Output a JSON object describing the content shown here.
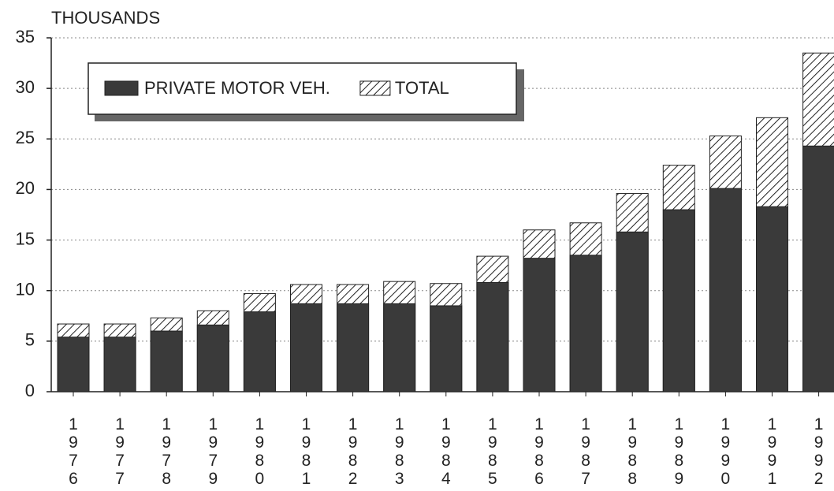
{
  "chart_data": {
    "type": "bar",
    "y_axis_label": "THOUSANDS",
    "categories": [
      "1976",
      "1977",
      "1978",
      "1979",
      "1980",
      "1981",
      "1982",
      "1983",
      "1984",
      "1985",
      "1986",
      "1987",
      "1988",
      "1989",
      "1990",
      "1991",
      "1992"
    ],
    "series": [
      {
        "name": "PRIVATE MOTOR VEH.",
        "color": "#3a3a3a",
        "values": [
          5.4,
          5.4,
          6.0,
          6.6,
          7.9,
          8.7,
          8.7,
          8.7,
          8.5,
          10.8,
          13.2,
          13.5,
          15.8,
          18.0,
          20.1,
          18.3,
          24.3
        ]
      },
      {
        "name": "TOTAL",
        "color": "#ffffff",
        "hatch": true,
        "values": [
          6.7,
          6.7,
          7.3,
          8.0,
          9.7,
          10.6,
          10.6,
          10.9,
          10.7,
          13.4,
          16.0,
          16.7,
          19.6,
          22.4,
          25.3,
          27.1,
          33.5
        ]
      }
    ],
    "ylim": [
      0,
      35
    ],
    "yticks": [
      0,
      5,
      10,
      15,
      20,
      25,
      30,
      35
    ],
    "grid": true,
    "legend": "top-left"
  }
}
